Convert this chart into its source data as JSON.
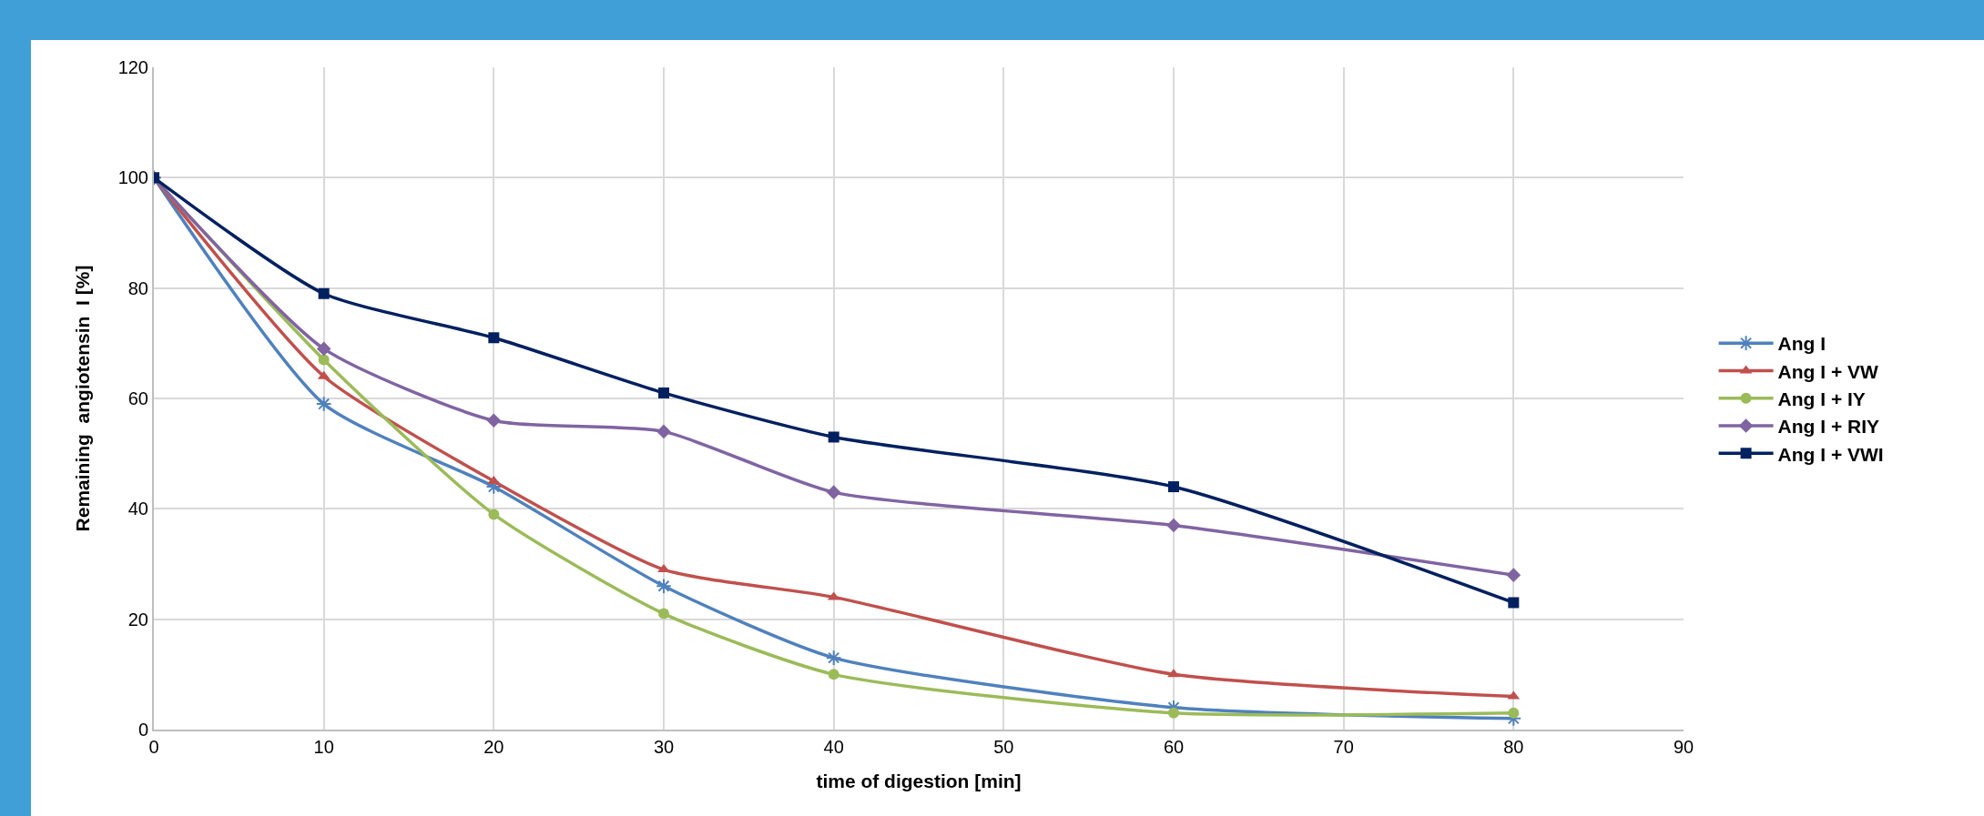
{
  "chart_data": {
    "type": "line",
    "xlabel": "time of digestion [min]",
    "ylabel": "Remaining  angiotensin  I [%]",
    "x": [
      0,
      10,
      20,
      30,
      40,
      60,
      80
    ],
    "series": [
      {
        "name": "Ang I",
        "color": "#4f81bd",
        "marker": "cross",
        "values": [
          100,
          59,
          44,
          26,
          13,
          4,
          2
        ]
      },
      {
        "name": "Ang I + VW",
        "color": "#c0504d",
        "marker": "triangle",
        "values": [
          100,
          64,
          45,
          29,
          24,
          10,
          6
        ]
      },
      {
        "name": "Ang I + IY",
        "color": "#9bbb59",
        "marker": "circle",
        "values": [
          100,
          67,
          39,
          21,
          10,
          3,
          3
        ]
      },
      {
        "name": "Ang I + RIY",
        "color": "#8064a2",
        "marker": "diamond",
        "values": [
          100,
          69,
          56,
          54,
          43,
          37,
          28
        ]
      },
      {
        "name": "Ang I + VWI",
        "color": "#002060",
        "marker": "square",
        "values": [
          100,
          79,
          71,
          61,
          53,
          44,
          23
        ]
      }
    ],
    "xlim": [
      0,
      90
    ],
    "xticks": [
      0,
      10,
      20,
      30,
      40,
      50,
      60,
      70,
      80,
      90
    ],
    "ylim": [
      0,
      120
    ],
    "yticks": [
      0,
      20,
      40,
      60,
      80,
      100,
      120
    ],
    "grid": true,
    "legend": "right",
    "line_style": "solid"
  }
}
